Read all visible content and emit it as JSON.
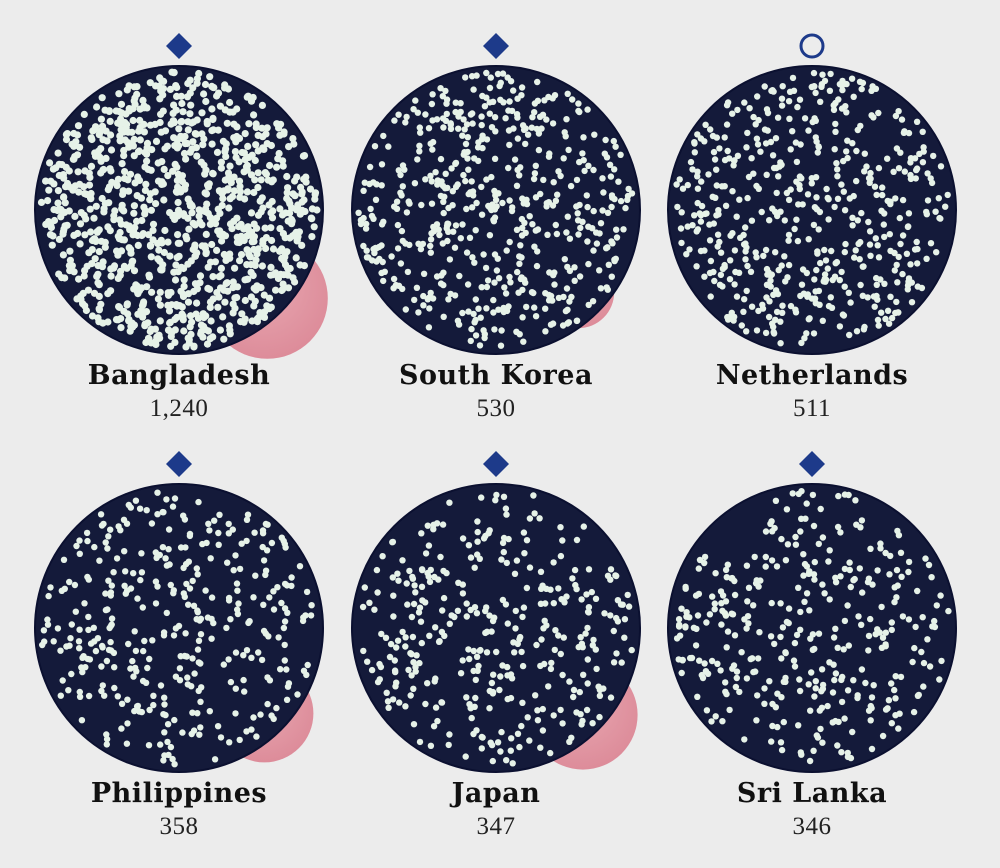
{
  "chart_data": {
    "type": "bubble-grid",
    "items": [
      {
        "country": "Bangladesh",
        "value": "1,240",
        "numeric_value": 1240,
        "marker": "filled-diamond",
        "secondary_circle_relative_size": 0.42,
        "dot_count": 1000
      },
      {
        "country": "South Korea",
        "value": "530",
        "numeric_value": 530,
        "marker": "filled-diamond",
        "secondary_circle_relative_size": 0.25,
        "dot_count": 530
      },
      {
        "country": "Netherlands",
        "value": "511",
        "numeric_value": 511,
        "marker": "hollow-circle",
        "secondary_circle_relative_size": 0.14,
        "dot_count": 511
      },
      {
        "country": "Philippines",
        "value": "358",
        "numeric_value": 358,
        "marker": "filled-diamond",
        "secondary_circle_relative_size": 0.34,
        "dot_count": 358
      },
      {
        "country": "Japan",
        "value": "347",
        "numeric_value": 347,
        "marker": "filled-diamond",
        "secondary_circle_relative_size": 0.38,
        "dot_count": 347
      },
      {
        "country": "Sri Lanka",
        "value": "346",
        "numeric_value": 346,
        "marker": "filled-diamond",
        "secondary_circle_relative_size": 0.15,
        "dot_count": 346
      }
    ]
  },
  "colors": {
    "background": "#ececec",
    "main_circle": "#141a3a",
    "main_circle_stroke": "#0b1030",
    "dots": "#e6f2e8",
    "secondary_circle": "#dc8a98",
    "marker": "#1d3a8a",
    "label": "#111111"
  },
  "icons": {
    "filled-diamond": "diamond-icon",
    "hollow-circle": "ring-icon"
  }
}
